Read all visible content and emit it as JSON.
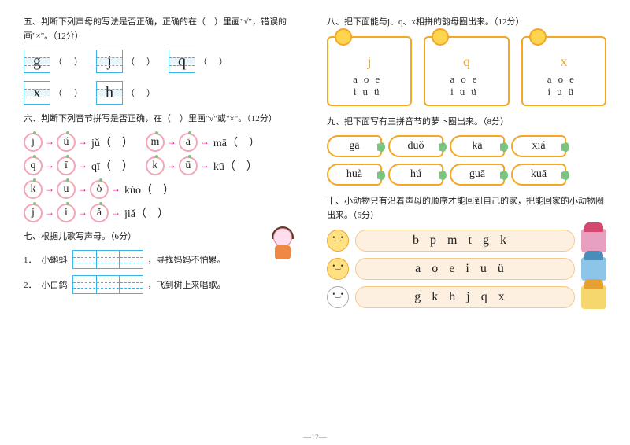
{
  "page_number": "—12—",
  "q5": {
    "title": "五、判断下列声母的写法是否正确，正确的在（　）里画\"√\"，错误的画\"×\"。（12分）",
    "items": [
      [
        "g",
        "j",
        "q"
      ],
      [
        "x",
        "h",
        ""
      ]
    ]
  },
  "q6": {
    "title": "六、判断下列音节拼写是否正确，在（　）里画\"√\"或\"×\"。（12分）",
    "rows": [
      [
        {
          "a": "j",
          "b": "ǔ",
          "r": "jǔ"
        },
        {
          "a": "m",
          "b": "ā",
          "r": "mā"
        }
      ],
      [
        {
          "a": "q",
          "b": "ī",
          "r": "qī"
        },
        {
          "a": "k",
          "b": "ū",
          "r": "kū"
        }
      ],
      [
        {
          "a": "k",
          "b": "u",
          "c": "ò",
          "r": "kùo"
        }
      ],
      [
        {
          "a": "j",
          "b": "i",
          "c": "ǎ",
          "r": "jiǎ"
        }
      ]
    ]
  },
  "q7": {
    "title": "七、根据儿歌写声母。（6分）",
    "rows": [
      {
        "n": "1．",
        "pre": "小蝌蚪",
        "post": "，寻找妈妈不怕累。"
      },
      {
        "n": "2．",
        "pre": "小白鸽",
        "post": "，飞到树上来唱歌。"
      }
    ]
  },
  "q8": {
    "title": "八、把下面能与j、q、x相拼的韵母圈出来。（12分）",
    "cards": [
      {
        "head": "j",
        "r1": "aoe",
        "r2": "iuü"
      },
      {
        "head": "q",
        "r1": "aoe",
        "r2": "iuü"
      },
      {
        "head": "x",
        "r1": "aoe",
        "r2": "iuü"
      }
    ]
  },
  "q9": {
    "title": "九、把下面写有三拼音节的萝卜圈出来。（8分）",
    "items": [
      "gā",
      "duǒ",
      "kā",
      "xiá",
      "huà",
      "hú",
      "guā",
      "kuā"
    ]
  },
  "q10": {
    "title": "十、小动物只有沿着声母的顺序才能回到自己的家，把能回家的小动物圈出来。（6分）",
    "rows": [
      {
        "letters": "bpmtgk",
        "house": "pink"
      },
      {
        "letters": "aoeiuü",
        "house": "blue"
      },
      {
        "letters": "gkhjqx",
        "house": "yellow"
      }
    ]
  }
}
